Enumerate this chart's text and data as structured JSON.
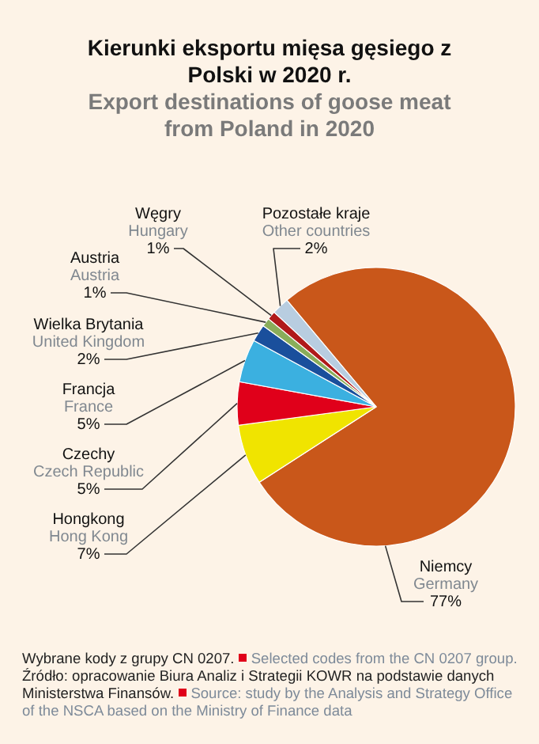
{
  "chart_data": {
    "type": "pie",
    "title": "Kierunki eksportu mięsa gęsiego z Polski w 2020 r.",
    "subtitle": "Export destinations of goose meat from Poland in 2020",
    "categories": [
      "Niemcy\nGermany",
      "Hongkong\nHong Kong",
      "Czechy\nCzech Republic",
      "Francja\nFrance",
      "Wielka Brytania\nUnited Kingdom",
      "Austria\nAustria",
      "Węgry\nHungary",
      "Pozostałe kraje\nOther countries"
    ],
    "values": [
      77,
      7,
      5,
      5,
      2,
      1,
      1,
      2
    ],
    "value_labels": [
      "77%",
      "7%",
      "5%",
      "5%",
      "2%",
      "1%",
      "1%",
      "2%"
    ],
    "colors": [
      "#c9571a",
      "#f0e400",
      "#e0001a",
      "#3bb0e0",
      "#1a4f9c",
      "#8aad5a",
      "#b01a1a",
      "#b8cde0"
    ],
    "annotations": [
      "Wybrane kody z grupy CN 0207.",
      "Selected codes from the CN 0207 group.",
      "Źródło: opracowanie Biura Analiz i Strategii KOWR na podstawie danych Ministerstwa Finansów.",
      "Source: study by the Analysis and Strategy Office of the NSCA based on the Ministry of Finance data"
    ]
  }
}
